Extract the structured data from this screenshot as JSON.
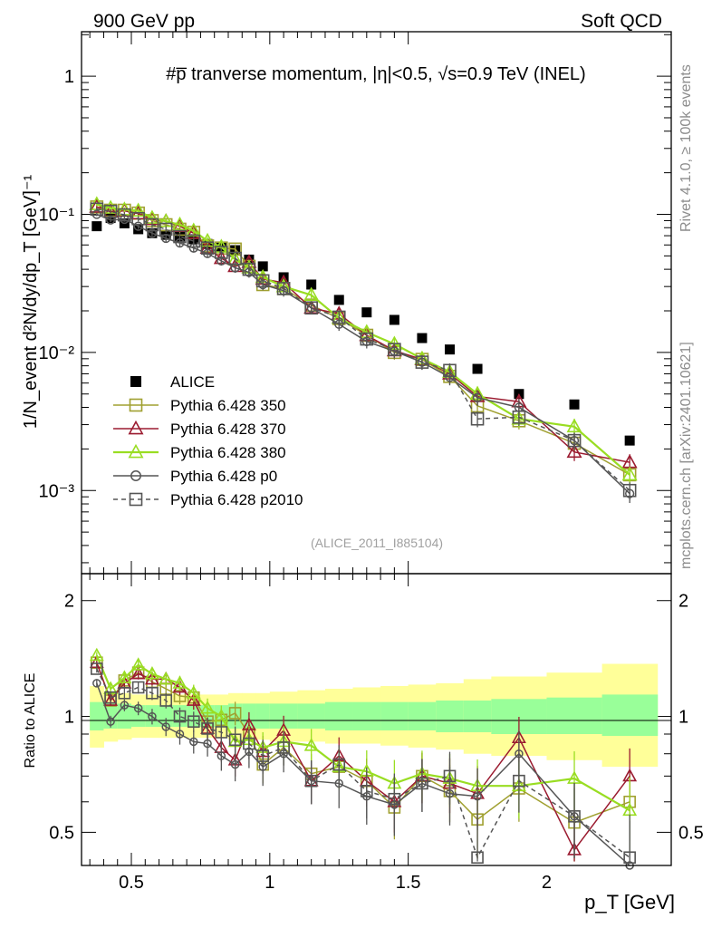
{
  "header": {
    "left": "900 GeV pp",
    "right": "Soft QCD"
  },
  "side": {
    "rivet": "Rivet 4.1.0, ≥ 100k events",
    "mcplots": "mcplots.cern.ch [arXiv:2401.10621]"
  },
  "analysis_tag": "(ALICE_2011_I885104)",
  "colors": {
    "alice": "#000000",
    "p350": "#a0a030",
    "p370": "#9b1b30",
    "p380": "#99dd22",
    "p0": "#555555",
    "p2010": "#555555",
    "band_outer": "#ffff99",
    "band_inner": "#99ff99"
  },
  "chart_data": [
    {
      "type": "scatter",
      "title": "#p̅ tranverse momentum, |η|<0.5, √s=0.9 TeV (INEL)",
      "ylabel": "1/N_event d²N/dy/dp_T [GeV]⁻¹",
      "xlabel": "p_T [GeV]",
      "xlim": [
        0.32,
        2.45
      ],
      "ylim": [
        0.00025,
        2.1
      ],
      "yscale": "log",
      "yticks": [
        {
          "v": 1,
          "label": "1"
        },
        {
          "v": 0.1,
          "label": "10⁻¹"
        },
        {
          "v": 0.01,
          "label": "10⁻²"
        },
        {
          "v": 0.001,
          "label": "10⁻³"
        }
      ],
      "x": [
        0.375,
        0.425,
        0.475,
        0.525,
        0.575,
        0.625,
        0.675,
        0.725,
        0.775,
        0.825,
        0.875,
        0.925,
        0.975,
        1.05,
        1.15,
        1.25,
        1.35,
        1.45,
        1.55,
        1.65,
        1.75,
        1.9,
        2.1,
        2.3
      ],
      "series": [
        {
          "name": "ALICE",
          "marker": "filled-square",
          "values": [
            0.082,
            0.094,
            0.086,
            0.078,
            0.073,
            0.071,
            0.069,
            0.066,
            0.061,
            0.058,
            0.055,
            0.047,
            0.042,
            0.035,
            0.031,
            0.024,
            0.0195,
            0.0172,
            0.0127,
            0.0105,
            0.0076,
            0.005,
            0.0042,
            0.0023
          ]
        },
        {
          "name": "Pythia 6.428 350",
          "marker": "open-square",
          "values": [
            0.113,
            0.107,
            0.107,
            0.102,
            0.09,
            0.084,
            0.078,
            0.074,
            0.059,
            0.057,
            0.056,
            0.042,
            0.031,
            0.029,
            0.022,
            0.0176,
            0.0133,
            0.01,
            0.0089,
            0.0067,
            0.0041,
            0.0032,
            0.0022,
            0.0013
          ]
        },
        {
          "name": "Pythia 6.428 370",
          "marker": "open-triangle",
          "values": [
            0.113,
            0.104,
            0.106,
            0.101,
            0.092,
            0.089,
            0.082,
            0.073,
            0.057,
            0.048,
            0.042,
            0.045,
            0.034,
            0.032,
            0.021,
            0.019,
            0.0133,
            0.0103,
            0.0089,
            0.007,
            0.0048,
            0.0044,
            0.0019,
            0.0016
          ]
        },
        {
          "name": "Pythia 6.428 380",
          "marker": "open-triangle",
          "values": [
            0.118,
            0.111,
            0.108,
            0.106,
            0.094,
            0.089,
            0.084,
            0.076,
            0.064,
            0.058,
            0.047,
            0.041,
            0.035,
            0.03,
            0.026,
            0.0177,
            0.014,
            0.0115,
            0.009,
            0.0072,
            0.005,
            0.0033,
            0.0029,
            0.0013
          ]
        },
        {
          "name": "Pythia 6.428 p0",
          "marker": "open-circle",
          "values": [
            0.1,
            0.091,
            0.092,
            0.082,
            0.073,
            0.067,
            0.062,
            0.057,
            0.052,
            0.046,
            0.041,
            0.038,
            0.031,
            0.028,
            0.021,
            0.016,
            0.012,
            0.0102,
            0.0085,
            0.0066,
            0.0047,
            0.004,
            0.0023,
            0.00095
          ]
        },
        {
          "name": "Pythia 6.428 p2010",
          "marker": "open-square",
          "dashed": true,
          "values": [
            0.109,
            0.105,
            0.099,
            0.093,
            0.084,
            0.078,
            0.069,
            0.064,
            0.057,
            0.053,
            0.048,
            0.04,
            0.033,
            0.029,
            0.021,
            0.018,
            0.0125,
            0.0105,
            0.0085,
            0.0074,
            0.0033,
            0.0034,
            0.0023,
            0.001
          ]
        }
      ]
    },
    {
      "type": "line",
      "ylabel": "Ratio to ALICE",
      "xlabel": "p_T [GeV]",
      "xlim": [
        0.32,
        2.45
      ],
      "ylim": [
        0.41,
        2.35
      ],
      "yscale": "log",
      "yticks": [
        {
          "v": 2,
          "label": "2"
        },
        {
          "v": 1,
          "label": "1"
        },
        {
          "v": 0.5,
          "label": "0.5"
        }
      ],
      "xticks": [
        {
          "v": 0.5,
          "label": "0.5"
        },
        {
          "v": 1,
          "label": "1"
        },
        {
          "v": 1.5,
          "label": "1.5"
        },
        {
          "v": 2,
          "label": "2"
        }
      ],
      "bin_edges": [
        0.35,
        0.4,
        0.45,
        0.5,
        0.55,
        0.6,
        0.65,
        0.7,
        0.75,
        0.8,
        0.85,
        0.9,
        0.95,
        1.0,
        1.1,
        1.2,
        1.3,
        1.4,
        1.5,
        1.6,
        1.7,
        1.8,
        2.0,
        2.2,
        2.4
      ],
      "band_inner": [
        [
          0.92,
          1.09
        ],
        [
          0.93,
          1.08
        ],
        [
          0.93,
          1.08
        ],
        [
          0.94,
          1.07
        ],
        [
          0.94,
          1.07
        ],
        [
          0.94,
          1.07
        ],
        [
          0.94,
          1.07
        ],
        [
          0.94,
          1.07
        ],
        [
          0.94,
          1.07
        ],
        [
          0.94,
          1.07
        ],
        [
          0.93,
          1.08
        ],
        [
          0.93,
          1.08
        ],
        [
          0.93,
          1.08
        ],
        [
          0.93,
          1.08
        ],
        [
          0.93,
          1.08
        ],
        [
          0.92,
          1.09
        ],
        [
          0.92,
          1.09
        ],
        [
          0.92,
          1.09
        ],
        [
          0.92,
          1.09
        ],
        [
          0.91,
          1.1
        ],
        [
          0.91,
          1.1
        ],
        [
          0.9,
          1.11
        ],
        [
          0.9,
          1.12
        ],
        [
          0.89,
          1.14
        ]
      ],
      "band_outer": [
        [
          0.83,
          1.2
        ],
        [
          0.86,
          1.16
        ],
        [
          0.87,
          1.15
        ],
        [
          0.88,
          1.14
        ],
        [
          0.88,
          1.14
        ],
        [
          0.88,
          1.14
        ],
        [
          0.88,
          1.14
        ],
        [
          0.88,
          1.14
        ],
        [
          0.88,
          1.14
        ],
        [
          0.88,
          1.14
        ],
        [
          0.87,
          1.15
        ],
        [
          0.87,
          1.15
        ],
        [
          0.87,
          1.15
        ],
        [
          0.86,
          1.16
        ],
        [
          0.86,
          1.17
        ],
        [
          0.85,
          1.18
        ],
        [
          0.85,
          1.19
        ],
        [
          0.84,
          1.2
        ],
        [
          0.83,
          1.21
        ],
        [
          0.82,
          1.22
        ],
        [
          0.8,
          1.25
        ],
        [
          0.79,
          1.27
        ],
        [
          0.77,
          1.3
        ],
        [
          0.74,
          1.37
        ]
      ],
      "x": [
        0.375,
        0.425,
        0.475,
        0.525,
        0.575,
        0.625,
        0.675,
        0.725,
        0.775,
        0.825,
        0.875,
        0.925,
        0.975,
        1.05,
        1.15,
        1.25,
        1.35,
        1.45,
        1.55,
        1.65,
        1.75,
        1.9,
        2.1,
        2.3
      ],
      "series": [
        {
          "name": "Pythia 6.428 350",
          "values": [
            1.38,
            1.1,
            1.24,
            1.3,
            1.23,
            1.18,
            1.13,
            1.12,
            0.97,
            0.98,
            1.02,
            0.9,
            0.75,
            0.83,
            0.71,
            0.74,
            0.68,
            0.58,
            0.7,
            0.64,
            0.54,
            0.65,
            0.53,
            0.6
          ]
        },
        {
          "name": "Pythia 6.428 370",
          "values": [
            1.38,
            1.1,
            1.22,
            1.29,
            1.25,
            1.25,
            1.19,
            1.1,
            0.93,
            0.83,
            0.77,
            0.95,
            0.81,
            0.92,
            0.68,
            0.79,
            0.68,
            0.6,
            0.7,
            0.67,
            0.63,
            0.88,
            0.45,
            0.7
          ]
        },
        {
          "name": "Pythia 6.428 380",
          "values": [
            1.44,
            1.18,
            1.26,
            1.36,
            1.29,
            1.25,
            1.22,
            1.15,
            1.05,
            1.0,
            0.86,
            0.87,
            0.83,
            0.86,
            0.84,
            0.74,
            0.72,
            0.67,
            0.71,
            0.69,
            0.66,
            0.66,
            0.69,
            0.57
          ]
        },
        {
          "name": "Pythia 6.428 p0",
          "values": [
            1.22,
            0.97,
            1.07,
            1.05,
            1.0,
            0.94,
            0.9,
            0.86,
            0.85,
            0.79,
            0.75,
            0.81,
            0.74,
            0.8,
            0.68,
            0.67,
            0.62,
            0.59,
            0.67,
            0.63,
            0.62,
            0.8,
            0.55,
            0.41
          ]
        },
        {
          "name": "Pythia 6.428 p2010",
          "values": [
            1.33,
            1.12,
            1.15,
            1.19,
            1.15,
            1.1,
            1.0,
            0.97,
            0.93,
            0.91,
            0.87,
            0.85,
            0.79,
            0.83,
            0.68,
            0.75,
            0.64,
            0.61,
            0.67,
            0.7,
            0.43,
            0.68,
            0.55,
            0.43
          ]
        }
      ]
    }
  ]
}
